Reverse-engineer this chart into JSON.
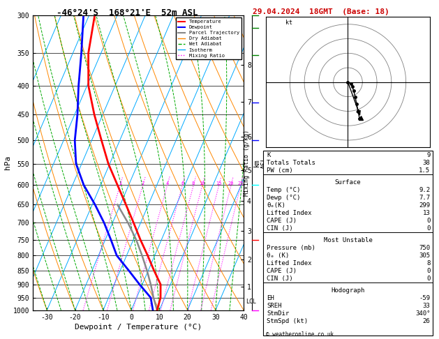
{
  "title": "-46°24'S  168°21'E  52m ASL",
  "date_title": "29.04.2024  18GMT  (Base: 18)",
  "xlabel": "Dewpoint / Temperature (°C)",
  "ylabel_left": "hPa",
  "pressure_levels": [
    300,
    350,
    400,
    450,
    500,
    550,
    600,
    650,
    700,
    750,
    800,
    850,
    900,
    950,
    1000
  ],
  "pressure_min": 300,
  "pressure_max": 1000,
  "temp_min": -35,
  "temp_max": 40,
  "background_color": "#ffffff",
  "temp_color": "#ff0000",
  "dewp_color": "#0000ff",
  "parcel_color": "#888888",
  "dry_adiabat_color": "#ff8800",
  "wet_adiabat_color": "#00aa00",
  "isotherm_color": "#00aaff",
  "mixing_ratio_color": "#ff00ff",
  "temp_data_pressure": [
    1000,
    950,
    900,
    850,
    800,
    750,
    700,
    650,
    600,
    550,
    500,
    450,
    400,
    350,
    300
  ],
  "temp_data_temp": [
    9.2,
    8.5,
    6.5,
    2.0,
    -2.5,
    -7.5,
    -12.5,
    -18.0,
    -24.0,
    -30.5,
    -36.5,
    -43.0,
    -49.5,
    -54.5,
    -58.0
  ],
  "dewp_data_pressure": [
    1000,
    950,
    900,
    850,
    800,
    750,
    700,
    650,
    600,
    550,
    500,
    450,
    400,
    350,
    300
  ],
  "dewp_data_temp": [
    7.7,
    5.0,
    -1.0,
    -7.0,
    -13.5,
    -18.0,
    -23.0,
    -29.0,
    -36.0,
    -42.0,
    -46.0,
    -49.0,
    -53.0,
    -57.0,
    -62.0
  ],
  "parcel_data_pressure": [
    1000,
    950,
    900,
    850,
    800,
    750,
    700,
    650
  ],
  "parcel_data_temp": [
    9.2,
    6.0,
    3.0,
    -0.5,
    -4.5,
    -9.0,
    -14.5,
    -21.0
  ],
  "lcl_pressure": 965,
  "mixing_ratio_values": [
    1,
    2,
    4,
    6,
    8,
    10,
    15,
    20,
    25
  ],
  "km_ticks": [
    1,
    2,
    3,
    4,
    5,
    6,
    7,
    8
  ],
  "km_pressures": [
    908,
    812,
    724,
    640,
    564,
    493,
    427,
    367
  ],
  "stats_K": 9,
  "stats_TT": 38,
  "stats_PW": 1.5,
  "stats_surf_temp": 9.2,
  "stats_surf_dewp": 7.7,
  "stats_theta_e": 299,
  "stats_li": 13,
  "stats_cape": 0,
  "stats_cin": 0,
  "stats_mu_press": 750,
  "stats_mu_theta_e": 305,
  "stats_mu_li": 8,
  "stats_mu_cape": 0,
  "stats_mu_cin": 0,
  "stats_eh": -59,
  "stats_sreh": 33,
  "stats_stmdir": 340,
  "stats_stmspd": 26,
  "hodo_u": [
    0,
    2,
    3,
    4,
    5,
    6,
    7,
    8
  ],
  "hodo_v": [
    0,
    -1,
    -3,
    -6,
    -10,
    -15,
    -20,
    -25
  ],
  "hodo_colors": [
    "#00aa00",
    "#00aa00",
    "#0000ff",
    "#0000ff",
    "#0000ff",
    "#ff0000",
    "#ff0000",
    "#ff0000"
  ]
}
